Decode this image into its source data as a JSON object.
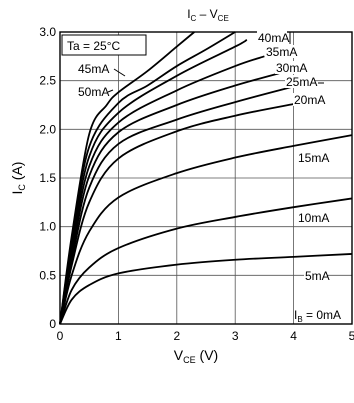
{
  "chart_data": {
    "type": "line",
    "title": {
      "main": "I",
      "main_sub": "C",
      "sep": " – V",
      "sep_sub": "CE"
    },
    "condition_label": "Ta = 25°C",
    "xlabel": {
      "main": "V",
      "sub": "CE",
      "unit": " (V)"
    },
    "ylabel": {
      "main": "I",
      "sub": "C",
      "unit": " (A)"
    },
    "xlim": [
      0,
      5
    ],
    "ylim": [
      0,
      3.0
    ],
    "grid": true,
    "x_ticks": [
      "0",
      "1",
      "2",
      "3",
      "4",
      "5"
    ],
    "y_ticks": [
      "0",
      "0.5",
      "1.0",
      "1.5",
      "2.0",
      "2.5",
      "3.0"
    ],
    "ib_zero_label": {
      "main": "I",
      "sub": "B",
      "rest": " = 0mA"
    },
    "series": [
      {
        "name": "5mA",
        "x": [
          0,
          0.2,
          0.5,
          1.0,
          2.0,
          3.0,
          4.0,
          5.0
        ],
        "y": [
          0,
          0.25,
          0.4,
          0.52,
          0.61,
          0.66,
          0.69,
          0.72
        ]
      },
      {
        "name": "10mA",
        "x": [
          0,
          0.2,
          0.5,
          1.0,
          2.0,
          3.0,
          4.0,
          5.0
        ],
        "y": [
          0,
          0.35,
          0.58,
          0.78,
          0.98,
          1.1,
          1.2,
          1.29
        ]
      },
      {
        "name": "15mA",
        "x": [
          0,
          0.2,
          0.5,
          1.0,
          2.0,
          3.0,
          4.0,
          5.0
        ],
        "y": [
          0,
          0.5,
          0.95,
          1.3,
          1.55,
          1.71,
          1.83,
          1.94
        ]
      },
      {
        "name": "20mA",
        "x": [
          0,
          0.2,
          0.5,
          1.0,
          2.0,
          3.0,
          4.0
        ],
        "y": [
          0,
          0.6,
          1.25,
          1.7,
          1.98,
          2.14,
          2.26
        ]
      },
      {
        "name": "25mA",
        "x": [
          0,
          0.2,
          0.5,
          1.0,
          2.0,
          3.0,
          4.0
        ],
        "y": [
          0,
          0.65,
          1.4,
          1.85,
          2.1,
          2.28,
          2.44
        ]
      },
      {
        "name": "30mA",
        "x": [
          0,
          0.2,
          0.5,
          1.0,
          2.0,
          3.0,
          3.9
        ],
        "y": [
          0,
          0.7,
          1.52,
          1.97,
          2.25,
          2.45,
          2.6
        ]
      },
      {
        "name": "35mA",
        "x": [
          0,
          0.2,
          0.5,
          1.0,
          2.0,
          3.0,
          3.5
        ],
        "y": [
          0,
          0.75,
          1.62,
          2.07,
          2.4,
          2.65,
          2.75
        ]
      },
      {
        "name": "40mA",
        "x": [
          0,
          0.2,
          0.5,
          1.0,
          2.0,
          3.0,
          3.2
        ],
        "y": [
          0,
          0.8,
          1.72,
          2.17,
          2.55,
          2.85,
          2.92
        ]
      },
      {
        "name": "45mA",
        "x": [
          0,
          0.2,
          0.5,
          1.0,
          1.5,
          2.0,
          2.5,
          3.0
        ],
        "y": [
          0,
          0.85,
          1.82,
          2.27,
          2.45,
          2.65,
          2.82,
          3.0
        ]
      },
      {
        "name": "50mA",
        "x": [
          0,
          0.2,
          0.5,
          0.8,
          1.0,
          1.5,
          2.0,
          2.3
        ],
        "y": [
          0,
          0.9,
          1.95,
          2.25,
          2.38,
          2.6,
          2.85,
          3.0
        ]
      }
    ]
  }
}
